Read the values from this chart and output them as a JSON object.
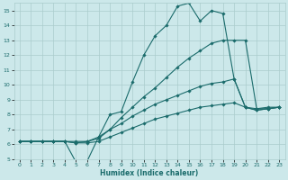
{
  "bg_color": "#cce8ea",
  "grid_color": "#aacccc",
  "line_color": "#1a6b6b",
  "xlabel": "Humidex (Indice chaleur)",
  "xlim": [
    -0.5,
    23.5
  ],
  "ylim": [
    5,
    15.5
  ],
  "yticks": [
    5,
    6,
    7,
    8,
    9,
    10,
    11,
    12,
    13,
    14,
    15
  ],
  "xticks": [
    0,
    1,
    2,
    3,
    4,
    5,
    6,
    7,
    8,
    9,
    10,
    11,
    12,
    13,
    14,
    15,
    16,
    17,
    18,
    19,
    20,
    21,
    22,
    23
  ],
  "lines": [
    {
      "x": [
        0,
        1,
        2,
        3,
        4,
        5,
        6,
        7,
        8,
        9,
        10,
        11,
        12,
        13,
        14,
        15,
        16,
        17,
        18,
        19,
        20,
        21,
        22,
        23
      ],
      "y": [
        6.2,
        6.2,
        6.2,
        6.2,
        6.2,
        4.8,
        4.9,
        6.5,
        8.0,
        8.2,
        10.2,
        12.0,
        13.3,
        14.0,
        15.3,
        15.5,
        14.3,
        15.0,
        14.8,
        10.4,
        8.5,
        8.4,
        8.5,
        8.5
      ]
    },
    {
      "x": [
        0,
        1,
        2,
        3,
        4,
        5,
        6,
        7,
        8,
        9,
        10,
        11,
        12,
        13,
        14,
        15,
        16,
        17,
        18,
        19,
        20,
        21,
        22,
        23
      ],
      "y": [
        6.2,
        6.2,
        6.2,
        6.2,
        6.2,
        6.2,
        6.2,
        6.5,
        7.0,
        7.8,
        8.5,
        9.2,
        9.8,
        10.5,
        11.2,
        11.8,
        12.3,
        12.8,
        13.0,
        13.0,
        13.0,
        8.4,
        8.4,
        8.5
      ]
    },
    {
      "x": [
        0,
        1,
        2,
        3,
        4,
        5,
        6,
        7,
        8,
        9,
        10,
        11,
        12,
        13,
        14,
        15,
        16,
        17,
        18,
        19,
        20,
        21,
        22,
        23
      ],
      "y": [
        6.2,
        6.2,
        6.2,
        6.2,
        6.2,
        6.1,
        6.2,
        6.4,
        7.0,
        7.4,
        7.9,
        8.3,
        8.7,
        9.0,
        9.3,
        9.6,
        9.9,
        10.1,
        10.2,
        10.4,
        8.5,
        8.3,
        8.4,
        8.5
      ]
    },
    {
      "x": [
        0,
        1,
        2,
        3,
        4,
        5,
        6,
        7,
        8,
        9,
        10,
        11,
        12,
        13,
        14,
        15,
        16,
        17,
        18,
        19,
        20,
        21,
        22,
        23
      ],
      "y": [
        6.2,
        6.2,
        6.2,
        6.2,
        6.2,
        6.1,
        6.1,
        6.2,
        6.5,
        6.8,
        7.1,
        7.4,
        7.7,
        7.9,
        8.1,
        8.3,
        8.5,
        8.6,
        8.7,
        8.8,
        8.5,
        8.3,
        8.4,
        8.5
      ]
    }
  ]
}
